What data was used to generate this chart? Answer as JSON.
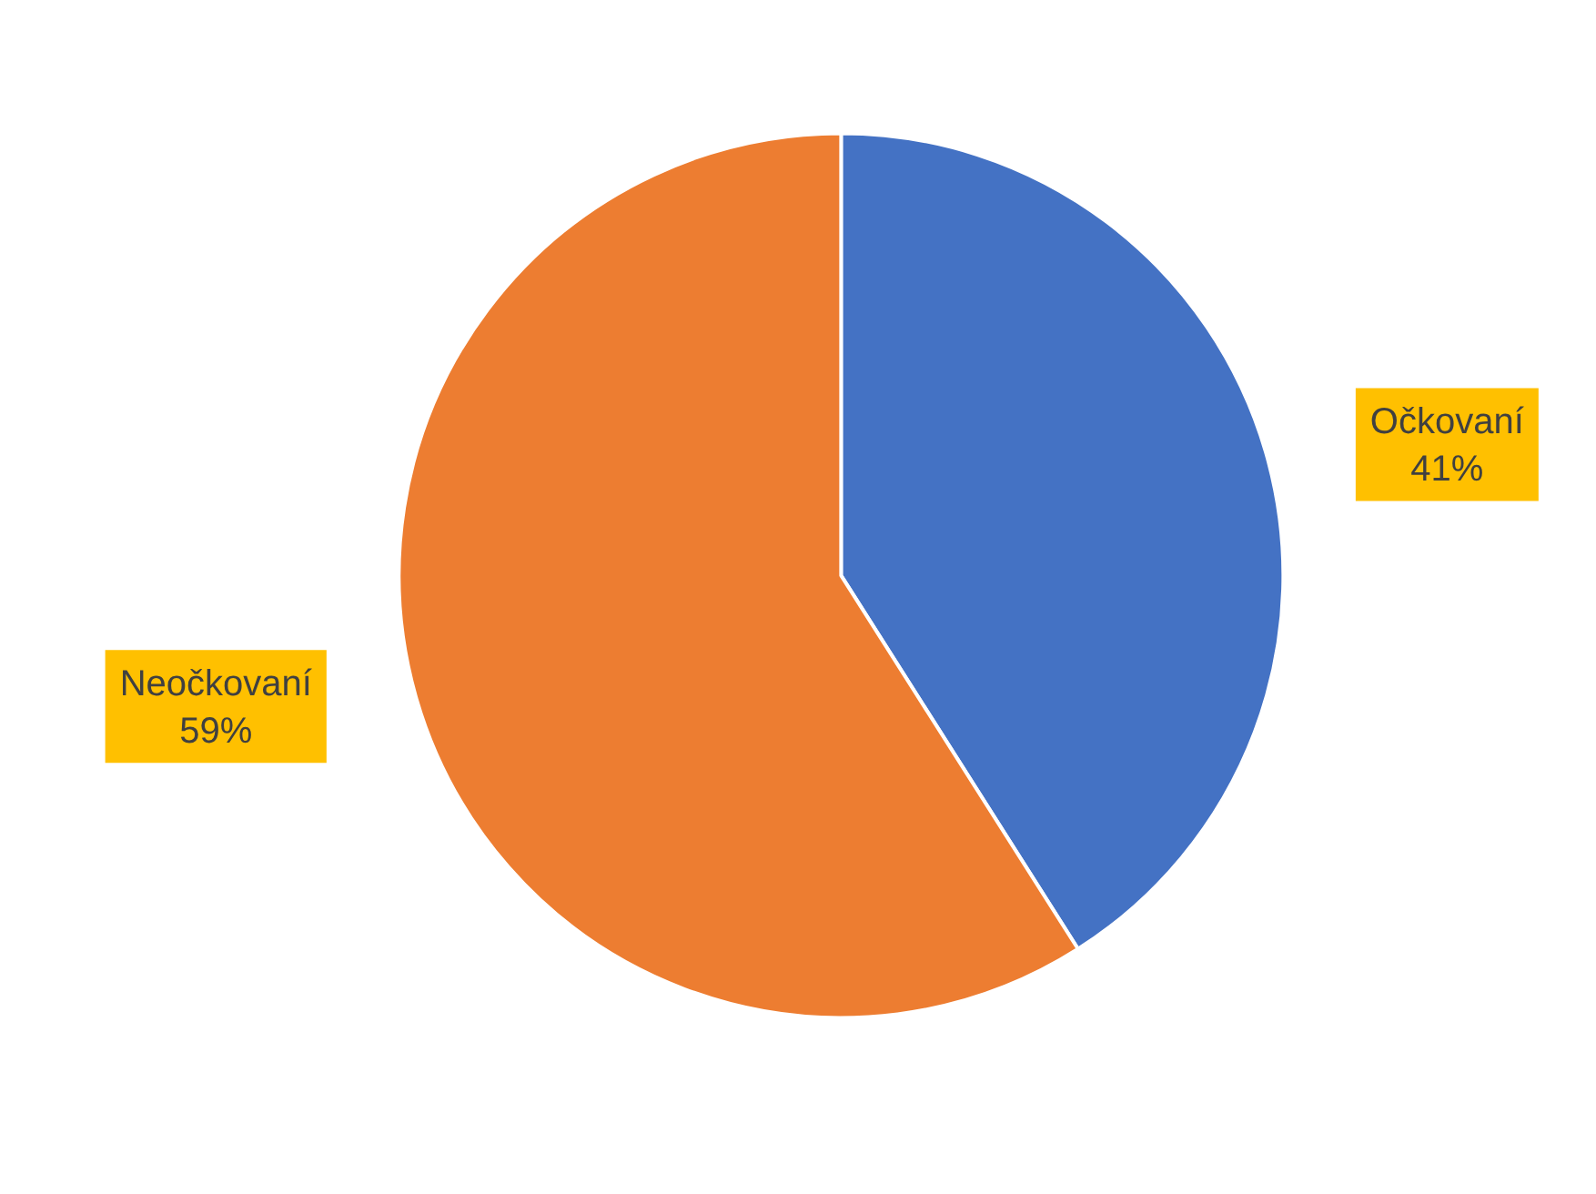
{
  "chart_data": {
    "type": "pie",
    "categories": [
      "Očkovaní",
      "Neočkovaní"
    ],
    "values": [
      41,
      59
    ],
    "colors": [
      "#4472c4",
      "#ed7d31"
    ],
    "value_labels": [
      "41%",
      "59%"
    ],
    "legend": false
  }
}
